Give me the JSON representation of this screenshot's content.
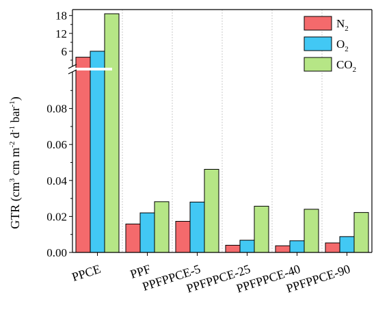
{
  "chart_data": {
    "type": "bar",
    "ylabel": "GTR (cm3 cm m-2 d-1 bar-1)",
    "ylabel_parts": {
      "prefix": "GTR (cm",
      "sup1": "3",
      "mid1": " cm m",
      "sup2": "-2",
      "mid2": " d",
      "sup3": "-1",
      "mid3": " bar",
      "sup4": "-1",
      "suffix": ")"
    },
    "categories": [
      "PPCE",
      "PPF",
      "PPFPPCE-5",
      "PPFPPCE-25",
      "PPFPPCE-40",
      "PPFPPCE-90"
    ],
    "series": [
      {
        "name": "N2",
        "label_main": "N",
        "label_sub": "2",
        "color": "#f46a6c",
        "values": [
          4.0,
          0.0158,
          0.0173,
          0.004,
          0.0037,
          0.0053
        ]
      },
      {
        "name": "O2",
        "label_main": "O",
        "label_sub": "2",
        "color": "#42c8f4",
        "values": [
          6.0,
          0.022,
          0.028,
          0.0068,
          0.0065,
          0.0088
        ]
      },
      {
        "name": "CO2",
        "label_main": "CO",
        "label_sub": "2",
        "color": "#b6e686",
        "values": [
          18.6,
          0.0282,
          0.0462,
          0.0257,
          0.024,
          0.0222
        ]
      }
    ],
    "axis_break": true,
    "y_lower": {
      "range": [
        0,
        0.1
      ],
      "ticks": [
        "0.00",
        "0.02",
        "0.04",
        "0.06",
        "0.08"
      ],
      "tick_values": [
        0,
        0.02,
        0.04,
        0.06,
        0.08
      ]
    },
    "y_upper": {
      "range": [
        0,
        20
      ],
      "ticks": [
        "6",
        "12",
        "18"
      ],
      "tick_values": [
        6,
        12,
        18
      ]
    },
    "legend_position": "top-right",
    "grid": "vertical dotted"
  }
}
